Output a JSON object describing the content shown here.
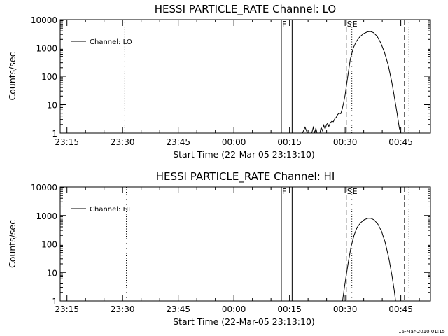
{
  "footer": {
    "timestamp": "16-Mar-2010 01:15"
  },
  "chart_data": [
    {
      "type": "line",
      "title": "HESSI PARTICLE_RATE Channel: LO",
      "xlabel": "Start Time (22-Mar-05 23:13:10)",
      "ylabel": "Counts/sec",
      "yscale": "log",
      "ylim": [
        1,
        10000
      ],
      "xlim_minutes_after_23_15": [
        -1.833,
        98
      ],
      "x_ticks": [
        {
          "label": "23:15",
          "min": 0
        },
        {
          "label": "23:30",
          "min": 15
        },
        {
          "label": "23:45",
          "min": 30
        },
        {
          "label": "00:00",
          "min": 45
        },
        {
          "label": "00:15",
          "min": 60
        },
        {
          "label": "00:30",
          "min": 75
        },
        {
          "label": "00:45",
          "min": 90
        }
      ],
      "y_ticks": [
        {
          "label": "1",
          "v": 1
        },
        {
          "label": "10",
          "v": 10
        },
        {
          "label": "100",
          "v": 100
        },
        {
          "label": "1000",
          "v": 1000
        },
        {
          "label": "10000",
          "v": 10000
        }
      ],
      "series": [
        {
          "name": "Channel: LO",
          "points": [
            [
              63.5,
              1
            ],
            [
              64.2,
              1.6
            ],
            [
              64.8,
              1
            ],
            [
              66.0,
              1
            ],
            [
              66.4,
              1.6
            ],
            [
              66.8,
              1
            ],
            [
              67.1,
              1.5
            ],
            [
              67.4,
              1
            ],
            [
              68.2,
              1
            ],
            [
              68.5,
              1.6
            ],
            [
              68.9,
              1.2
            ],
            [
              69.2,
              1.9
            ],
            [
              69.6,
              1.4
            ],
            [
              70.0,
              2.0
            ],
            [
              70.3,
              2.2
            ],
            [
              70.6,
              1.7
            ],
            [
              71.0,
              2.3
            ],
            [
              71.4,
              2.6
            ],
            [
              71.8,
              2.5
            ],
            [
              72.2,
              3.2
            ],
            [
              72.6,
              3.6
            ],
            [
              73.0,
              4.5
            ],
            [
              73.4,
              5.0
            ],
            [
              73.8,
              4.8
            ],
            [
              74.2,
              7
            ],
            [
              74.6,
              12
            ],
            [
              75.0,
              22
            ],
            [
              75.6,
              80
            ],
            [
              76.4,
              400
            ],
            [
              77.2,
              1000
            ],
            [
              78.0,
              1700
            ],
            [
              79.0,
              2500
            ],
            [
              80.0,
              3200
            ],
            [
              81.0,
              3700
            ],
            [
              81.8,
              3800
            ],
            [
              82.6,
              3500
            ],
            [
              83.6,
              2600
            ],
            [
              84.6,
              1500
            ],
            [
              85.6,
              700
            ],
            [
              86.6,
              250
            ],
            [
              87.6,
              60
            ],
            [
              88.4,
              15
            ],
            [
              89.0,
              5
            ],
            [
              89.6,
              1.5
            ],
            [
              90.0,
              1
            ]
          ]
        }
      ],
      "markers": [
        {
          "label": "F",
          "min": 57.8,
          "style": "solid"
        },
        {
          "label": "",
          "min": 60.7,
          "style": "solid"
        },
        {
          "label": "S",
          "min": 75.3,
          "style": "dashed"
        },
        {
          "label": "E",
          "min": 76.8,
          "style": "dotted"
        },
        {
          "label": "",
          "min": 91.0,
          "style": "dashed"
        },
        {
          "label": "",
          "min": 92.2,
          "style": "dotted"
        },
        {
          "label": "",
          "min": 15.6,
          "style": "dotted"
        }
      ],
      "legend": {
        "position": "top-left"
      }
    },
    {
      "type": "line",
      "title": "HESSI PARTICLE_RATE Channel: HI",
      "xlabel": "Start Time (22-Mar-05 23:13:10)",
      "ylabel": "Counts/sec",
      "yscale": "log",
      "ylim": [
        1,
        10000
      ],
      "xlim_minutes_after_23_15": [
        -1.833,
        98
      ],
      "x_ticks": [
        {
          "label": "23:15",
          "min": 0
        },
        {
          "label": "23:30",
          "min": 15
        },
        {
          "label": "23:45",
          "min": 30
        },
        {
          "label": "00:00",
          "min": 45
        },
        {
          "label": "00:15",
          "min": 60
        },
        {
          "label": "00:30",
          "min": 75
        },
        {
          "label": "00:45",
          "min": 90
        }
      ],
      "y_ticks": [
        {
          "label": "1",
          "v": 1
        },
        {
          "label": "10",
          "v": 10
        },
        {
          "label": "100",
          "v": 100
        },
        {
          "label": "1000",
          "v": 1000
        },
        {
          "label": "10000",
          "v": 10000
        }
      ],
      "series": [
        {
          "name": "Channel: HI",
          "points": [
            [
              74.3,
              1
            ],
            [
              74.8,
              3
            ],
            [
              75.3,
              8
            ],
            [
              75.9,
              25
            ],
            [
              76.6,
              80
            ],
            [
              77.4,
              200
            ],
            [
              78.2,
              380
            ],
            [
              79.2,
              560
            ],
            [
              80.2,
              720
            ],
            [
              81.2,
              800
            ],
            [
              82.0,
              790
            ],
            [
              82.8,
              700
            ],
            [
              83.8,
              500
            ],
            [
              84.8,
              280
            ],
            [
              85.8,
              110
            ],
            [
              86.8,
              30
            ],
            [
              87.6,
              8
            ],
            [
              88.2,
              2.5
            ],
            [
              88.6,
              1
            ]
          ]
        }
      ],
      "markers": [
        {
          "label": "F",
          "min": 57.8,
          "style": "solid"
        },
        {
          "label": "",
          "min": 60.7,
          "style": "solid"
        },
        {
          "label": "S",
          "min": 75.3,
          "style": "dashed"
        },
        {
          "label": "E",
          "min": 76.8,
          "style": "dotted"
        },
        {
          "label": "",
          "min": 91.0,
          "style": "dashed"
        },
        {
          "label": "",
          "min": 92.2,
          "style": "dotted"
        },
        {
          "label": "",
          "min": 16.0,
          "style": "dotted"
        }
      ],
      "legend": {
        "position": "top-left"
      }
    }
  ]
}
